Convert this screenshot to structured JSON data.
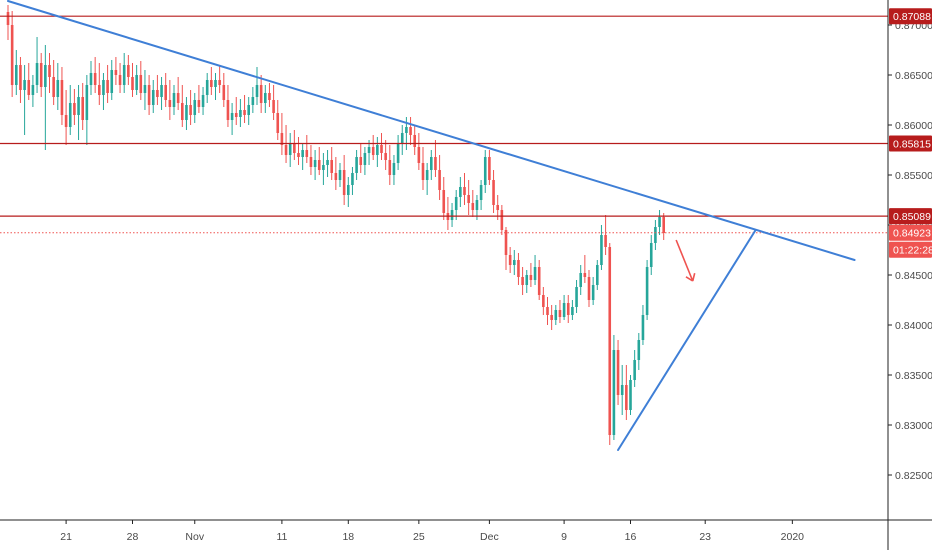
{
  "chart_data": {
    "type": "candlestick",
    "title": "",
    "xlabel": "",
    "ylabel": "",
    "ylim": [
      0.8205,
      0.8725
    ],
    "grid": false,
    "colors": {
      "up": "#26a69a",
      "down": "#ef5350",
      "resistance": "#b71c1c",
      "trendline": "#3f7fd6",
      "current_price": "#ef5350",
      "axis": "#222222"
    },
    "y_ticks": [
      "0.87000",
      "0.86500",
      "0.86000",
      "0.85500",
      "0.85000",
      "0.84500",
      "0.84000",
      "0.83500",
      "0.83000",
      "0.82500"
    ],
    "y_tick_values": [
      0.87,
      0.865,
      0.86,
      0.855,
      0.85,
      0.845,
      0.84,
      0.835,
      0.83,
      0.825
    ],
    "x_ticks": [
      "21",
      "28",
      "Nov",
      "11",
      "18",
      "25",
      "Dec",
      "9",
      "16",
      "23",
      "2020"
    ],
    "x_tick_index": [
      14,
      30,
      45,
      66,
      82,
      99,
      116,
      134,
      150,
      168,
      189
    ],
    "levels": [
      {
        "label": "0.87088",
        "value": 0.87088,
        "style": "resistance"
      },
      {
        "label": "0.85815",
        "value": 0.85815,
        "style": "resistance"
      },
      {
        "label": "0.85089",
        "value": 0.85089,
        "style": "resistance"
      }
    ],
    "current_price": {
      "label": "0.84923",
      "value": 0.84923,
      "countdown": "01:22:28"
    },
    "trendlines": [
      {
        "name": "descending",
        "from": {
          "i": 0,
          "y": 0.8724
        },
        "to": {
          "i": 204,
          "y": 0.8465
        }
      },
      {
        "name": "ascending",
        "from": {
          "i": 147,
          "y": 0.8275
        },
        "to": {
          "i": 180,
          "y": 0.8494
        }
      }
    ],
    "arrow": {
      "from": {
        "i": 161,
        "y": 0.8485
      },
      "to": {
        "i": 165,
        "y": 0.8444
      }
    },
    "candles": [
      [
        0.8713,
        0.872,
        0.8685,
        0.87
      ],
      [
        0.87,
        0.8714,
        0.8628,
        0.864
      ],
      [
        0.864,
        0.8675,
        0.863,
        0.866
      ],
      [
        0.866,
        0.8668,
        0.8622,
        0.8635
      ],
      [
        0.8635,
        0.866,
        0.859,
        0.8645
      ],
      [
        0.8645,
        0.8662,
        0.8625,
        0.863
      ],
      [
        0.863,
        0.865,
        0.8618,
        0.864
      ],
      [
        0.864,
        0.8688,
        0.8632,
        0.8662
      ],
      [
        0.8662,
        0.8672,
        0.8628,
        0.8638
      ],
      [
        0.8638,
        0.868,
        0.8575,
        0.866
      ],
      [
        0.866,
        0.8672,
        0.8632,
        0.8648
      ],
      [
        0.8648,
        0.8665,
        0.862,
        0.8628
      ],
      [
        0.8628,
        0.8662,
        0.8615,
        0.8645
      ],
      [
        0.8645,
        0.8658,
        0.86,
        0.861
      ],
      [
        0.861,
        0.8635,
        0.858,
        0.8598
      ],
      [
        0.8598,
        0.864,
        0.859,
        0.8622
      ],
      [
        0.8622,
        0.8636,
        0.86,
        0.861
      ],
      [
        0.861,
        0.864,
        0.8585,
        0.8628
      ],
      [
        0.8628,
        0.8642,
        0.8595,
        0.8605
      ],
      [
        0.8605,
        0.865,
        0.858,
        0.864
      ],
      [
        0.864,
        0.8664,
        0.863,
        0.8652
      ],
      [
        0.8652,
        0.8668,
        0.8632,
        0.864
      ],
      [
        0.864,
        0.8662,
        0.862,
        0.863
      ],
      [
        0.863,
        0.8652,
        0.8615,
        0.8645
      ],
      [
        0.8645,
        0.866,
        0.8622,
        0.8632
      ],
      [
        0.8632,
        0.8665,
        0.8625,
        0.8655
      ],
      [
        0.8655,
        0.8668,
        0.864,
        0.865
      ],
      [
        0.865,
        0.8662,
        0.8632,
        0.864
      ],
      [
        0.864,
        0.8672,
        0.8632,
        0.866
      ],
      [
        0.866,
        0.867,
        0.864,
        0.8648
      ],
      [
        0.8648,
        0.8662,
        0.8628,
        0.8635
      ],
      [
        0.8635,
        0.866,
        0.863,
        0.865
      ],
      [
        0.865,
        0.8664,
        0.8625,
        0.8632
      ],
      [
        0.8632,
        0.8655,
        0.8615,
        0.864
      ],
      [
        0.864,
        0.865,
        0.861,
        0.862
      ],
      [
        0.862,
        0.8645,
        0.8612,
        0.8635
      ],
      [
        0.8635,
        0.865,
        0.862,
        0.8628
      ],
      [
        0.8628,
        0.8648,
        0.8615,
        0.864
      ],
      [
        0.864,
        0.8652,
        0.8618,
        0.8625
      ],
      [
        0.8625,
        0.8645,
        0.8605,
        0.8618
      ],
      [
        0.8618,
        0.864,
        0.861,
        0.8632
      ],
      [
        0.8632,
        0.8648,
        0.8615,
        0.8622
      ],
      [
        0.8622,
        0.864,
        0.8598,
        0.8605
      ],
      [
        0.8605,
        0.8628,
        0.8595,
        0.862
      ],
      [
        0.862,
        0.8635,
        0.86,
        0.861
      ],
      [
        0.861,
        0.8632,
        0.8602,
        0.8625
      ],
      [
        0.8625,
        0.864,
        0.8612,
        0.8618
      ],
      [
        0.8618,
        0.8638,
        0.861,
        0.863
      ],
      [
        0.863,
        0.8652,
        0.8622,
        0.8645
      ],
      [
        0.8645,
        0.8658,
        0.863,
        0.8638
      ],
      [
        0.8638,
        0.8652,
        0.8625,
        0.8645
      ],
      [
        0.8645,
        0.866,
        0.8632,
        0.864
      ],
      [
        0.864,
        0.8652,
        0.8618,
        0.8625
      ],
      [
        0.8625,
        0.864,
        0.8598,
        0.8605
      ],
      [
        0.8605,
        0.8622,
        0.859,
        0.8612
      ],
      [
        0.8612,
        0.8628,
        0.86,
        0.8608
      ],
      [
        0.8608,
        0.8626,
        0.8598,
        0.8615
      ],
      [
        0.8615,
        0.863,
        0.8602,
        0.861
      ],
      [
        0.861,
        0.8628,
        0.86,
        0.862
      ],
      [
        0.862,
        0.8638,
        0.8612,
        0.8628
      ],
      [
        0.8628,
        0.8658,
        0.862,
        0.864
      ],
      [
        0.864,
        0.865,
        0.8612,
        0.8622
      ],
      [
        0.8622,
        0.864,
        0.8612,
        0.8632
      ],
      [
        0.8632,
        0.8642,
        0.8618,
        0.8625
      ],
      [
        0.8625,
        0.864,
        0.8605,
        0.8612
      ],
      [
        0.8612,
        0.8625,
        0.8585,
        0.8592
      ],
      [
        0.8592,
        0.8612,
        0.857,
        0.858
      ],
      [
        0.858,
        0.86,
        0.8562,
        0.857
      ],
      [
        0.857,
        0.8592,
        0.8558,
        0.8582
      ],
      [
        0.8582,
        0.8595,
        0.8565,
        0.8572
      ],
      [
        0.8572,
        0.8588,
        0.856,
        0.8568
      ],
      [
        0.8568,
        0.8582,
        0.8555,
        0.8575
      ],
      [
        0.8575,
        0.859,
        0.8562,
        0.8568
      ],
      [
        0.8568,
        0.858,
        0.855,
        0.8558
      ],
      [
        0.8558,
        0.8575,
        0.8545,
        0.8565
      ],
      [
        0.8565,
        0.8578,
        0.855,
        0.8555
      ],
      [
        0.8555,
        0.8572,
        0.854,
        0.856
      ],
      [
        0.856,
        0.8575,
        0.8548,
        0.8565
      ],
      [
        0.8565,
        0.8578,
        0.8545,
        0.8552
      ],
      [
        0.8552,
        0.8568,
        0.8535,
        0.8545
      ],
      [
        0.8545,
        0.8562,
        0.8538,
        0.8555
      ],
      [
        0.8555,
        0.857,
        0.852,
        0.853
      ],
      [
        0.853,
        0.8548,
        0.8518,
        0.854
      ],
      [
        0.854,
        0.8558,
        0.853,
        0.8552
      ],
      [
        0.8552,
        0.8575,
        0.8545,
        0.8568
      ],
      [
        0.8568,
        0.8582,
        0.8552,
        0.856
      ],
      [
        0.856,
        0.8578,
        0.855,
        0.8572
      ],
      [
        0.8572,
        0.8585,
        0.856,
        0.8578
      ],
      [
        0.8578,
        0.859,
        0.8565,
        0.857
      ],
      [
        0.857,
        0.8588,
        0.8558,
        0.858
      ],
      [
        0.858,
        0.8592,
        0.8565,
        0.8572
      ],
      [
        0.8572,
        0.8585,
        0.8555,
        0.8565
      ],
      [
        0.8565,
        0.858,
        0.854,
        0.855
      ],
      [
        0.855,
        0.857,
        0.854,
        0.8562
      ],
      [
        0.8562,
        0.859,
        0.8555,
        0.8582
      ],
      [
        0.8582,
        0.86,
        0.857,
        0.8592
      ],
      [
        0.8592,
        0.8608,
        0.8575,
        0.8598
      ],
      [
        0.8598,
        0.8608,
        0.858,
        0.859
      ],
      [
        0.859,
        0.86,
        0.857,
        0.8578
      ],
      [
        0.8578,
        0.8592,
        0.8555,
        0.8562
      ],
      [
        0.8562,
        0.8578,
        0.8535,
        0.8545
      ],
      [
        0.8545,
        0.8562,
        0.853,
        0.8555
      ],
      [
        0.8555,
        0.8575,
        0.8545,
        0.8568
      ],
      [
        0.8568,
        0.8585,
        0.8548,
        0.8555
      ],
      [
        0.8555,
        0.857,
        0.8525,
        0.8535
      ],
      [
        0.8535,
        0.8548,
        0.8505,
        0.8512
      ],
      [
        0.8512,
        0.8528,
        0.8495,
        0.8505
      ],
      [
        0.8505,
        0.8522,
        0.8498,
        0.8515
      ],
      [
        0.8515,
        0.8535,
        0.8505,
        0.8528
      ],
      [
        0.8528,
        0.8548,
        0.8518,
        0.8538
      ],
      [
        0.8538,
        0.8552,
        0.852,
        0.853
      ],
      [
        0.853,
        0.8545,
        0.851,
        0.8522
      ],
      [
        0.8522,
        0.8535,
        0.8508,
        0.8515
      ],
      [
        0.8515,
        0.853,
        0.8505,
        0.8525
      ],
      [
        0.8525,
        0.8545,
        0.8515,
        0.854
      ],
      [
        0.854,
        0.8575,
        0.8532,
        0.8568
      ],
      [
        0.8568,
        0.8575,
        0.854,
        0.8545
      ],
      [
        0.8545,
        0.8555,
        0.8512,
        0.852
      ],
      [
        0.852,
        0.853,
        0.8505,
        0.8515
      ],
      [
        0.8515,
        0.852,
        0.849,
        0.8495
      ],
      [
        0.8495,
        0.8498,
        0.8455,
        0.847
      ],
      [
        0.847,
        0.8478,
        0.8452,
        0.846
      ],
      [
        0.846,
        0.8475,
        0.845,
        0.8465
      ],
      [
        0.8465,
        0.8472,
        0.844,
        0.8448
      ],
      [
        0.8448,
        0.8458,
        0.843,
        0.844
      ],
      [
        0.844,
        0.8455,
        0.8432,
        0.845
      ],
      [
        0.845,
        0.8462,
        0.8438,
        0.8445
      ],
      [
        0.8445,
        0.847,
        0.844,
        0.8458
      ],
      [
        0.8458,
        0.8465,
        0.8425,
        0.843
      ],
      [
        0.843,
        0.8438,
        0.841,
        0.8418
      ],
      [
        0.8418,
        0.8428,
        0.84,
        0.841
      ],
      [
        0.841,
        0.842,
        0.8395,
        0.8405
      ],
      [
        0.8405,
        0.842,
        0.84,
        0.8415
      ],
      [
        0.8415,
        0.8425,
        0.8402,
        0.8408
      ],
      [
        0.8408,
        0.843,
        0.8405,
        0.8422
      ],
      [
        0.8422,
        0.843,
        0.8402,
        0.841
      ],
      [
        0.841,
        0.8425,
        0.8405,
        0.8418
      ],
      [
        0.8418,
        0.8445,
        0.8412,
        0.8438
      ],
      [
        0.8438,
        0.846,
        0.843,
        0.8452
      ],
      [
        0.8452,
        0.847,
        0.8442,
        0.8448
      ],
      [
        0.8448,
        0.8455,
        0.8418,
        0.8425
      ],
      [
        0.8425,
        0.8448,
        0.842,
        0.844
      ],
      [
        0.844,
        0.8465,
        0.8435,
        0.846
      ],
      [
        0.846,
        0.85,
        0.8455,
        0.849
      ],
      [
        0.849,
        0.851,
        0.847,
        0.8478
      ],
      [
        0.8478,
        0.8482,
        0.828,
        0.829
      ],
      [
        0.829,
        0.839,
        0.8285,
        0.8375
      ],
      [
        0.8375,
        0.8385,
        0.832,
        0.833
      ],
      [
        0.833,
        0.836,
        0.831,
        0.834
      ],
      [
        0.834,
        0.836,
        0.8305,
        0.8315
      ],
      [
        0.8315,
        0.835,
        0.831,
        0.8345
      ],
      [
        0.8345,
        0.8375,
        0.8338,
        0.8365
      ],
      [
        0.8365,
        0.8392,
        0.8355,
        0.8385
      ],
      [
        0.8385,
        0.842,
        0.838,
        0.841
      ],
      [
        0.841,
        0.8465,
        0.8405,
        0.8458
      ],
      [
        0.8458,
        0.849,
        0.845,
        0.8482
      ],
      [
        0.8482,
        0.8505,
        0.8475,
        0.8498
      ],
      [
        0.8498,
        0.8515,
        0.849,
        0.8508
      ],
      [
        0.8508,
        0.8512,
        0.8485,
        0.8492
      ]
    ]
  }
}
